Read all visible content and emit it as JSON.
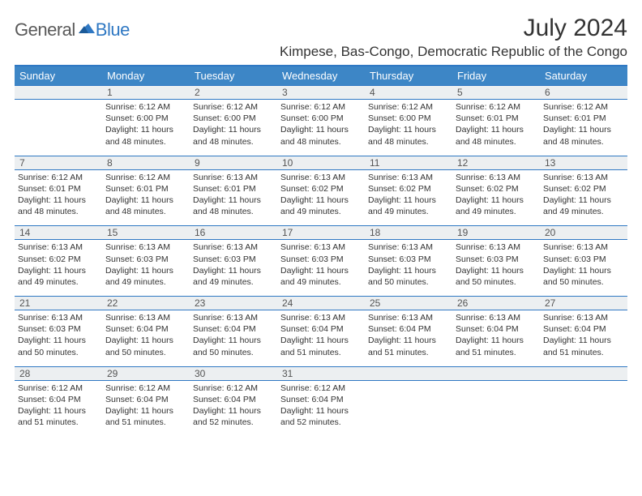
{
  "logo": {
    "general": "General",
    "blue": "Blue"
  },
  "title": "July 2024",
  "subtitle": "Kimpese, Bas-Congo, Democratic Republic of the Congo",
  "colors": {
    "header_bg": "#3d86c6",
    "border": "#2f78c3",
    "daynum_bg": "#eceff1",
    "text": "#333333"
  },
  "day_headers": [
    "Sunday",
    "Monday",
    "Tuesday",
    "Wednesday",
    "Thursday",
    "Friday",
    "Saturday"
  ],
  "weeks": [
    {
      "nums": [
        "",
        "1",
        "2",
        "3",
        "4",
        "5",
        "6"
      ],
      "cells": [
        null,
        {
          "sunrise": "Sunrise: 6:12 AM",
          "sunset": "Sunset: 6:00 PM",
          "day1": "Daylight: 11 hours",
          "day2": "and 48 minutes."
        },
        {
          "sunrise": "Sunrise: 6:12 AM",
          "sunset": "Sunset: 6:00 PM",
          "day1": "Daylight: 11 hours",
          "day2": "and 48 minutes."
        },
        {
          "sunrise": "Sunrise: 6:12 AM",
          "sunset": "Sunset: 6:00 PM",
          "day1": "Daylight: 11 hours",
          "day2": "and 48 minutes."
        },
        {
          "sunrise": "Sunrise: 6:12 AM",
          "sunset": "Sunset: 6:00 PM",
          "day1": "Daylight: 11 hours",
          "day2": "and 48 minutes."
        },
        {
          "sunrise": "Sunrise: 6:12 AM",
          "sunset": "Sunset: 6:01 PM",
          "day1": "Daylight: 11 hours",
          "day2": "and 48 minutes."
        },
        {
          "sunrise": "Sunrise: 6:12 AM",
          "sunset": "Sunset: 6:01 PM",
          "day1": "Daylight: 11 hours",
          "day2": "and 48 minutes."
        }
      ]
    },
    {
      "nums": [
        "7",
        "8",
        "9",
        "10",
        "11",
        "12",
        "13"
      ],
      "cells": [
        {
          "sunrise": "Sunrise: 6:12 AM",
          "sunset": "Sunset: 6:01 PM",
          "day1": "Daylight: 11 hours",
          "day2": "and 48 minutes."
        },
        {
          "sunrise": "Sunrise: 6:12 AM",
          "sunset": "Sunset: 6:01 PM",
          "day1": "Daylight: 11 hours",
          "day2": "and 48 minutes."
        },
        {
          "sunrise": "Sunrise: 6:13 AM",
          "sunset": "Sunset: 6:01 PM",
          "day1": "Daylight: 11 hours",
          "day2": "and 48 minutes."
        },
        {
          "sunrise": "Sunrise: 6:13 AM",
          "sunset": "Sunset: 6:02 PM",
          "day1": "Daylight: 11 hours",
          "day2": "and 49 minutes."
        },
        {
          "sunrise": "Sunrise: 6:13 AM",
          "sunset": "Sunset: 6:02 PM",
          "day1": "Daylight: 11 hours",
          "day2": "and 49 minutes."
        },
        {
          "sunrise": "Sunrise: 6:13 AM",
          "sunset": "Sunset: 6:02 PM",
          "day1": "Daylight: 11 hours",
          "day2": "and 49 minutes."
        },
        {
          "sunrise": "Sunrise: 6:13 AM",
          "sunset": "Sunset: 6:02 PM",
          "day1": "Daylight: 11 hours",
          "day2": "and 49 minutes."
        }
      ]
    },
    {
      "nums": [
        "14",
        "15",
        "16",
        "17",
        "18",
        "19",
        "20"
      ],
      "cells": [
        {
          "sunrise": "Sunrise: 6:13 AM",
          "sunset": "Sunset: 6:02 PM",
          "day1": "Daylight: 11 hours",
          "day2": "and 49 minutes."
        },
        {
          "sunrise": "Sunrise: 6:13 AM",
          "sunset": "Sunset: 6:03 PM",
          "day1": "Daylight: 11 hours",
          "day2": "and 49 minutes."
        },
        {
          "sunrise": "Sunrise: 6:13 AM",
          "sunset": "Sunset: 6:03 PM",
          "day1": "Daylight: 11 hours",
          "day2": "and 49 minutes."
        },
        {
          "sunrise": "Sunrise: 6:13 AM",
          "sunset": "Sunset: 6:03 PM",
          "day1": "Daylight: 11 hours",
          "day2": "and 49 minutes."
        },
        {
          "sunrise": "Sunrise: 6:13 AM",
          "sunset": "Sunset: 6:03 PM",
          "day1": "Daylight: 11 hours",
          "day2": "and 50 minutes."
        },
        {
          "sunrise": "Sunrise: 6:13 AM",
          "sunset": "Sunset: 6:03 PM",
          "day1": "Daylight: 11 hours",
          "day2": "and 50 minutes."
        },
        {
          "sunrise": "Sunrise: 6:13 AM",
          "sunset": "Sunset: 6:03 PM",
          "day1": "Daylight: 11 hours",
          "day2": "and 50 minutes."
        }
      ]
    },
    {
      "nums": [
        "21",
        "22",
        "23",
        "24",
        "25",
        "26",
        "27"
      ],
      "cells": [
        {
          "sunrise": "Sunrise: 6:13 AM",
          "sunset": "Sunset: 6:03 PM",
          "day1": "Daylight: 11 hours",
          "day2": "and 50 minutes."
        },
        {
          "sunrise": "Sunrise: 6:13 AM",
          "sunset": "Sunset: 6:04 PM",
          "day1": "Daylight: 11 hours",
          "day2": "and 50 minutes."
        },
        {
          "sunrise": "Sunrise: 6:13 AM",
          "sunset": "Sunset: 6:04 PM",
          "day1": "Daylight: 11 hours",
          "day2": "and 50 minutes."
        },
        {
          "sunrise": "Sunrise: 6:13 AM",
          "sunset": "Sunset: 6:04 PM",
          "day1": "Daylight: 11 hours",
          "day2": "and 51 minutes."
        },
        {
          "sunrise": "Sunrise: 6:13 AM",
          "sunset": "Sunset: 6:04 PM",
          "day1": "Daylight: 11 hours",
          "day2": "and 51 minutes."
        },
        {
          "sunrise": "Sunrise: 6:13 AM",
          "sunset": "Sunset: 6:04 PM",
          "day1": "Daylight: 11 hours",
          "day2": "and 51 minutes."
        },
        {
          "sunrise": "Sunrise: 6:13 AM",
          "sunset": "Sunset: 6:04 PM",
          "day1": "Daylight: 11 hours",
          "day2": "and 51 minutes."
        }
      ]
    },
    {
      "nums": [
        "28",
        "29",
        "30",
        "31",
        "",
        "",
        ""
      ],
      "cells": [
        {
          "sunrise": "Sunrise: 6:12 AM",
          "sunset": "Sunset: 6:04 PM",
          "day1": "Daylight: 11 hours",
          "day2": "and 51 minutes."
        },
        {
          "sunrise": "Sunrise: 6:12 AM",
          "sunset": "Sunset: 6:04 PM",
          "day1": "Daylight: 11 hours",
          "day2": "and 51 minutes."
        },
        {
          "sunrise": "Sunrise: 6:12 AM",
          "sunset": "Sunset: 6:04 PM",
          "day1": "Daylight: 11 hours",
          "day2": "and 52 minutes."
        },
        {
          "sunrise": "Sunrise: 6:12 AM",
          "sunset": "Sunset: 6:04 PM",
          "day1": "Daylight: 11 hours",
          "day2": "and 52 minutes."
        },
        null,
        null,
        null
      ]
    }
  ]
}
